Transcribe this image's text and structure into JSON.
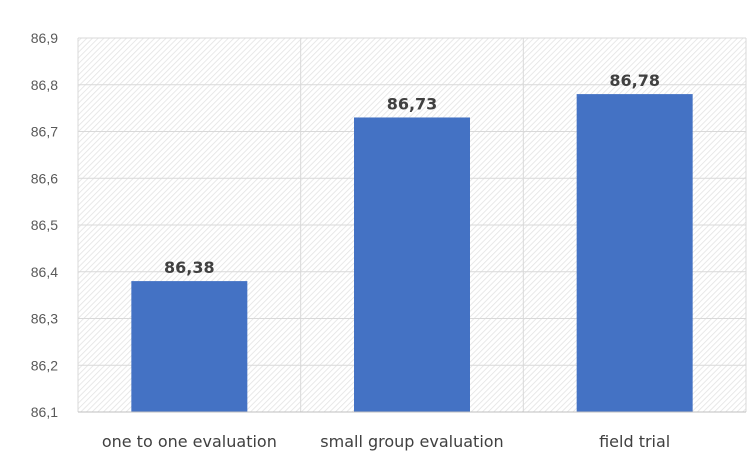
{
  "chart_data": {
    "type": "bar",
    "categories": [
      "one to one evaluation",
      "small group evaluation",
      "field trial"
    ],
    "values": [
      86.38,
      86.73,
      86.78
    ],
    "value_labels": [
      "86,38",
      "86,73",
      "86,78"
    ],
    "ylim": [
      86.1,
      86.9
    ],
    "y_ticks": [
      86.1,
      86.2,
      86.3,
      86.4,
      86.5,
      86.6,
      86.7,
      86.8,
      86.9
    ],
    "y_tick_labels": [
      "86,1",
      "86,2",
      "86,3",
      "86,4",
      "86,5",
      "86,6",
      "86,7",
      "86,8",
      "86,9"
    ],
    "title": "",
    "xlabel": "",
    "ylabel": "",
    "grid": true,
    "legend": "none",
    "bar_color": "#4472c4",
    "grid_color": "#d9d9d9",
    "plot_background": "hatched light gray"
  }
}
